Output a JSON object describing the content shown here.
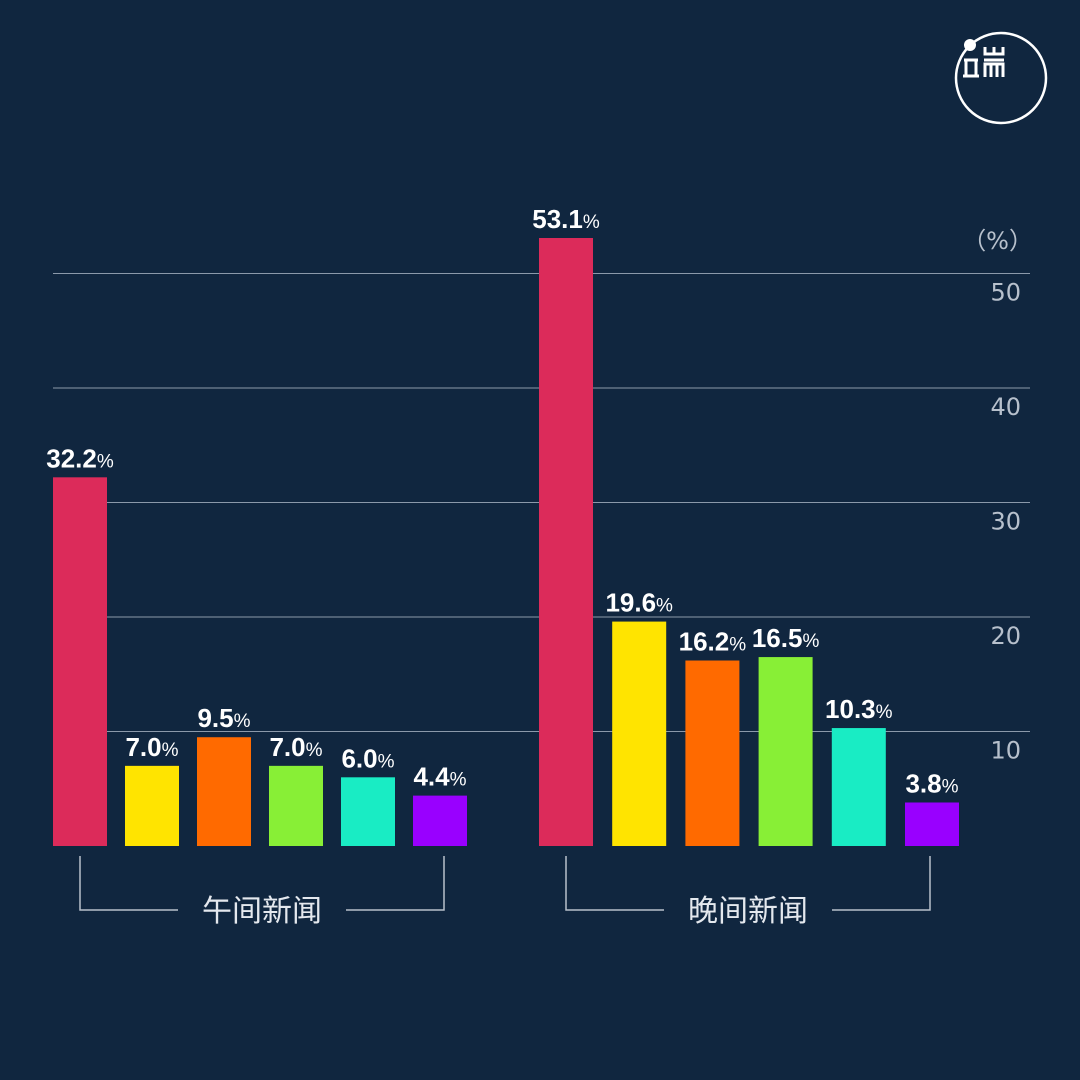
{
  "chart_data": {
    "type": "bar",
    "unit_label": "（%）",
    "value_suffix": "%",
    "ylim": [
      0,
      55
    ],
    "yticks": [
      10,
      20,
      30,
      40,
      50
    ],
    "grid": true,
    "categories": [
      "午间新闻",
      "晚间新闻"
    ],
    "colors": [
      "#dc2b5a",
      "#ffe400",
      "#ff6a00",
      "#88ef36",
      "#19ecc4",
      "#9900ff"
    ],
    "series": [
      {
        "values": [
          32.2,
          53.1
        ]
      },
      {
        "values": [
          7.0,
          19.6
        ]
      },
      {
        "values": [
          9.5,
          16.2
        ]
      },
      {
        "values": [
          7.0,
          16.5
        ]
      },
      {
        "values": [
          6.0,
          10.3
        ]
      },
      {
        "values": [
          4.4,
          3.8
        ]
      }
    ]
  }
}
